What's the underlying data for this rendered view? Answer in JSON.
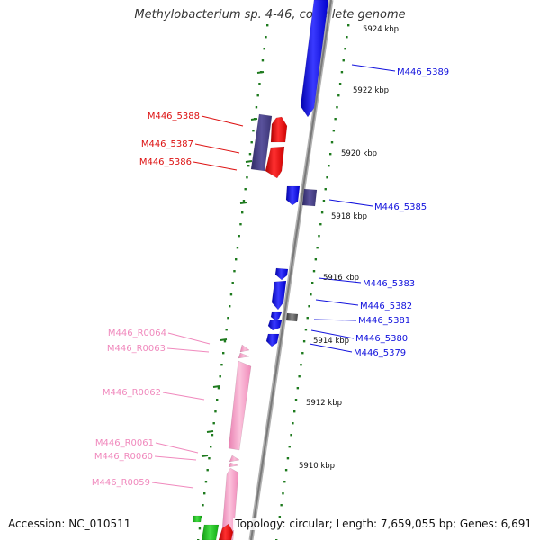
{
  "title": "Methylobacterium sp. 4-46, complete genome",
  "footer": {
    "accession": "Accession: NC_010511",
    "summary": "Topology: circular; Length: 7,659,055 bp; Genes: 6,691"
  },
  "colors": {
    "forward_cds": "#1111ee",
    "reverse_cds": "#ee1111",
    "rna": "#f7a3c9",
    "other": "#4b4585",
    "gray": "#6c6c6c",
    "green": "#22bb22",
    "ticks": "#1e7a1e",
    "backbone": "#8a8a8a"
  },
  "scale_marks": [
    {
      "label": "5924 kbp"
    },
    {
      "label": "5922 kbp"
    },
    {
      "label": "5920 kbp"
    },
    {
      "label": "5918 kbp"
    },
    {
      "label": "5916 kbp"
    },
    {
      "label": "5914 kbp"
    },
    {
      "label": "5912 kbp"
    },
    {
      "label": "5910 kbp"
    }
  ],
  "gene_labels": [
    {
      "text": "M446_5389",
      "color": "blue"
    },
    {
      "text": "M446_5388",
      "color": "red"
    },
    {
      "text": "M446_5387",
      "color": "red"
    },
    {
      "text": "M446_5386",
      "color": "red"
    },
    {
      "text": "M446_5385",
      "color": "blue"
    },
    {
      "text": "M446_5383",
      "color": "blue"
    },
    {
      "text": "M446_5382",
      "color": "blue"
    },
    {
      "text": "M446_5381",
      "color": "blue"
    },
    {
      "text": "M446_5380",
      "color": "blue"
    },
    {
      "text": "M446_5379",
      "color": "blue"
    },
    {
      "text": "M446_R0064",
      "color": "pink"
    },
    {
      "text": "M446_R0063",
      "color": "pink"
    },
    {
      "text": "M446_R0062",
      "color": "pink"
    },
    {
      "text": "M446_R0061",
      "color": "pink"
    },
    {
      "text": "M446_R0060",
      "color": "pink"
    },
    {
      "text": "M446_R0059",
      "color": "pink"
    }
  ]
}
